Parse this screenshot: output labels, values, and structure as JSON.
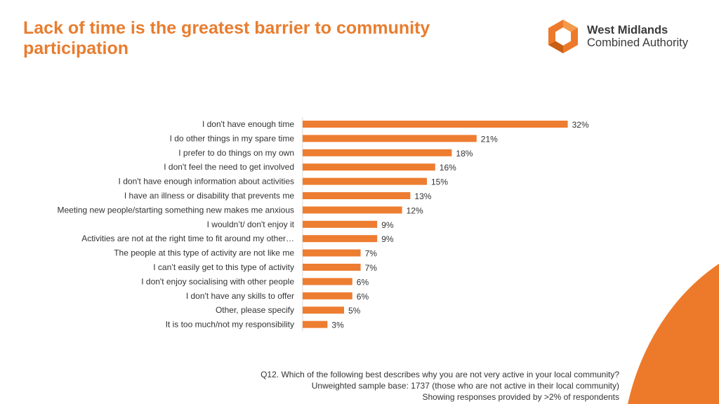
{
  "title": "Lack of time is the greatest barrier to community participation",
  "logo": {
    "line1": "West Midlands",
    "line2": "Combined Authority",
    "icon": "wmca-hexagon-logo"
  },
  "colors": {
    "accent": "#E87D2F",
    "bar": "#ED7D31",
    "text": "#333333",
    "corner": "#ED7A2A"
  },
  "chart_data": {
    "type": "bar",
    "orientation": "horizontal",
    "title": "",
    "xlabel": "",
    "ylabel": "",
    "categories": [
      "I don't have enough time",
      "I do other things in my spare time",
      "I prefer to do things on my own",
      "I don't feel the need to get involved",
      "I don't have enough information about activities",
      "I have an illness or disability that prevents me",
      "Meeting new people/starting something new makes me anxious",
      "I wouldn’t/ don't enjoy it",
      "Activities are not at the right time to fit around my other…",
      "The people at this type of activity are not like me",
      "I can’t easily get to this type of activity",
      "I don't enjoy socialising with other people",
      "I don't have any skills to offer",
      "Other, please specify",
      "It is too much/not my responsibility"
    ],
    "values": [
      32,
      21,
      18,
      16,
      15,
      13,
      12,
      9,
      9,
      7,
      7,
      6,
      6,
      5,
      3
    ],
    "value_labels": [
      "32%",
      "21%",
      "18%",
      "16%",
      "15%",
      "13%",
      "12%",
      "9%",
      "9%",
      "7%",
      "7%",
      "6%",
      "6%",
      "5%",
      "3%"
    ],
    "unit": "%",
    "xlim": [
      0,
      32
    ],
    "grid": false,
    "legend": "none"
  },
  "notes": {
    "question": "Q12. Which of the following best describes why you are not very active in your local community?",
    "base": "Unweighted sample base: 1737 (those who are not active in their local community)",
    "filter": "Showing responses provided by >2% of respondents"
  }
}
